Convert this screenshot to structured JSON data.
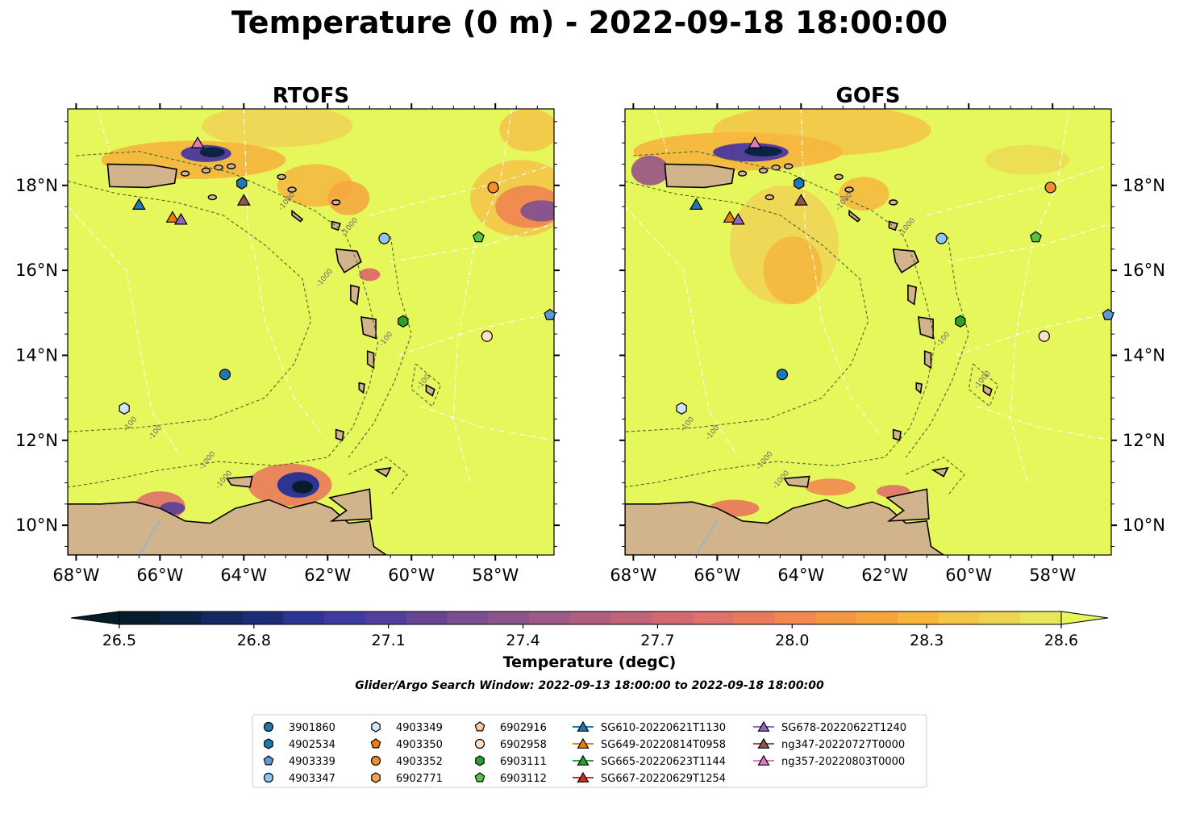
{
  "title": "Temperature (0 m) - 2022-09-18 18:00:00",
  "search_window": "Glider/Argo Search Window: 2022-09-13 18:00:00 to 2022-09-18 18:00:00",
  "chart_data": [
    {
      "type": "heatmap",
      "title": "RTOFS",
      "lon_range": [
        -68.2,
        -56.6
      ],
      "lat_range": [
        9.3,
        19.8
      ],
      "x_ticks": [
        "68°W",
        "66°W",
        "64°W",
        "62°W",
        "60°W",
        "58°W"
      ],
      "y_ticks": [
        "10°N",
        "12°N",
        "14°N",
        "16°N",
        "18°N"
      ],
      "y_tick_side": "left",
      "contour_label": "-1000",
      "contour_label_values": [
        "-100",
        "-100",
        "-1000",
        "-1000",
        "-1000",
        "-1000",
        "-100",
        "-100",
        "-1000"
      ],
      "background_field": "28.6+ over most of domain; cooler patches near Puerto Rico, Virgin Islands, 57°W 17.4°N and Venezuelan coast"
    },
    {
      "type": "heatmap",
      "title": "GOFS",
      "lon_range": [
        -68.2,
        -56.6
      ],
      "lat_range": [
        9.3,
        19.8
      ],
      "x_ticks": [
        "68°W",
        "66°W",
        "64°W",
        "62°W",
        "60°W",
        "58°W"
      ],
      "y_ticks": [
        "10°N",
        "12°N",
        "14°N",
        "16°N",
        "18°N"
      ],
      "y_tick_side": "right",
      "contour_label_values": [
        "-100",
        "-100",
        "-1000",
        "-1000",
        "-1000",
        "-1000",
        "-100",
        "-1000"
      ],
      "background_field": "28.6+ over most of domain; cooler patches north of Puerto Rico and Virgin Islands, warm plume 15–18°N 62–65°W"
    }
  ],
  "colorbar": {
    "label": "Temperature (degC)",
    "ticks": [
      "26.5",
      "26.8",
      "27.1",
      "27.4",
      "27.7",
      "28.0",
      "28.3",
      "28.6"
    ],
    "tick_values": [
      26.5,
      26.8,
      27.1,
      27.4,
      27.7,
      28.0,
      28.3,
      28.6
    ],
    "range": [
      26.4,
      28.6
    ],
    "colors": [
      "#081d2b",
      "#0d2346",
      "#14275e",
      "#1e2c78",
      "#2f3391",
      "#3f3a9e",
      "#533f99",
      "#664692",
      "#784e8e",
      "#8b548a",
      "#9c5a85",
      "#ae5f80",
      "#c0647a",
      "#d06a72",
      "#de716a",
      "#e87a5c",
      "#f08850",
      "#f49745",
      "#f6a53e",
      "#f6b63e",
      "#f3c548",
      "#eed454",
      "#e8e65c"
    ],
    "above_color": "#e6f75c"
  },
  "markers": [
    {
      "id": "3901860",
      "shape": "circle",
      "color": "#1f77b4",
      "lon": -64.45,
      "lat": 13.55
    },
    {
      "id": "4902534",
      "shape": "hexagon",
      "color": "#1f77b4",
      "lon": -64.05,
      "lat": 18.05
    },
    {
      "id": "4903339",
      "shape": "pentagon",
      "color": "#5c9ad0",
      "lon": -56.7,
      "lat": 14.95
    },
    {
      "id": "4903347",
      "shape": "circle",
      "color": "#8ec6ef",
      "lon": -60.65,
      "lat": 16.75
    },
    {
      "id": "4903349",
      "shape": "hexagon",
      "color": "#cde5f7",
      "lon": -66.85,
      "lat": 12.75
    },
    {
      "id": "4903350",
      "shape": "pentagon",
      "color": "#f07d0e",
      "lon": null,
      "lat": null
    },
    {
      "id": "4903352",
      "shape": "circle",
      "color": "#f48d32",
      "lon": -58.05,
      "lat": 17.95
    },
    {
      "id": "6902771",
      "shape": "hexagon",
      "color": "#f6a24a",
      "lon": null,
      "lat": null
    },
    {
      "id": "6902916",
      "shape": "pentagon",
      "color": "#fbc79e",
      "lon": null,
      "lat": null
    },
    {
      "id": "6902958",
      "shape": "circle",
      "color": "#fde0c6",
      "lon": -58.2,
      "lat": 14.45
    },
    {
      "id": "6903111",
      "shape": "hexagon",
      "color": "#2ca02c",
      "lon": -60.2,
      "lat": 14.8
    },
    {
      "id": "6903112",
      "shape": "pentagon",
      "color": "#57c248",
      "lon": -58.4,
      "lat": 16.78
    }
  ],
  "gliders": [
    {
      "id": "SG610-20220621T1130",
      "color": "#1f77b4",
      "lon": -66.5,
      "lat": 17.55
    },
    {
      "id": "SG649-20220814T0958",
      "color": "#f07d0e",
      "lon": -65.7,
      "lat": 17.25
    },
    {
      "id": "SG665-20220623T1144",
      "color": "#2ca02c",
      "lon": null,
      "lat": null
    },
    {
      "id": "SG667-20220629T1254",
      "color": "#d62728",
      "lon": null,
      "lat": null
    },
    {
      "id": "SG678-20220622T1240",
      "color": "#9467bd",
      "lon": -65.5,
      "lat": 17.2
    },
    {
      "id": "ng347-20220727T0000",
      "color": "#8c564b",
      "lon": -64.0,
      "lat": 17.65
    },
    {
      "id": "ng357-20220803T0000",
      "color": "#e377c2",
      "lon": -65.1,
      "lat": 19.0
    }
  ],
  "legend": {
    "columns": [
      [
        "3901860",
        "4902534",
        "4903339",
        "4903347"
      ],
      [
        "4903349",
        "4903350",
        "4903352",
        "6902771"
      ],
      [
        "6902916",
        "6902958",
        "6903111",
        "6903112"
      ],
      [
        "SG610-20220621T1130",
        "SG649-20220814T0958",
        "SG665-20220623T1144",
        "SG667-20220629T1254"
      ],
      [
        "SG678-20220622T1240",
        "ng347-20220727T0000",
        "ng357-20220803T0000"
      ]
    ]
  }
}
